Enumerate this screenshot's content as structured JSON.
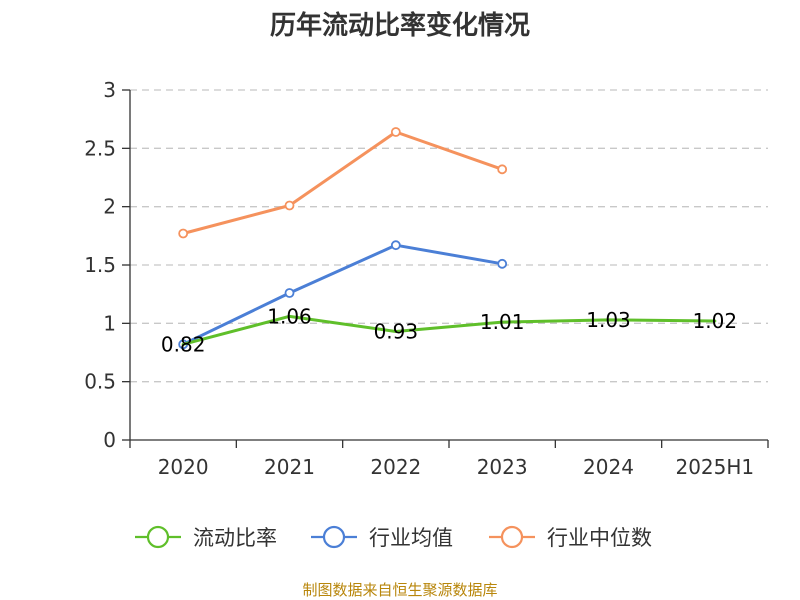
{
  "chart_data": {
    "type": "line",
    "title": "历年流动比率变化情况",
    "categories": [
      "2020",
      "2021",
      "2022",
      "2023",
      "2024",
      "2025H1"
    ],
    "ylim": [
      0,
      3
    ],
    "yticks": [
      "0",
      "0.5",
      "1",
      "1.5",
      "2",
      "2.5",
      "3"
    ],
    "grid": true,
    "legend_position": "bottom",
    "series": [
      {
        "name": "流动比率",
        "color": "#5fbf2a",
        "values": [
          0.82,
          1.06,
          0.93,
          1.01,
          1.03,
          1.02
        ],
        "labels": [
          "0.82",
          "1.06",
          "0.93",
          "1.01",
          "1.03",
          "1.02"
        ],
        "markers": false
      },
      {
        "name": "行业均值",
        "color": "#4b7fd6",
        "values": [
          0.82,
          1.26,
          1.67,
          1.51,
          null,
          null
        ],
        "markers": true
      },
      {
        "name": "行业中位数",
        "color": "#f5925d",
        "values": [
          1.77,
          2.01,
          2.64,
          2.32,
          null,
          null
        ],
        "markers": true
      }
    ],
    "source": "制图数据来自恒生聚源数据库"
  }
}
